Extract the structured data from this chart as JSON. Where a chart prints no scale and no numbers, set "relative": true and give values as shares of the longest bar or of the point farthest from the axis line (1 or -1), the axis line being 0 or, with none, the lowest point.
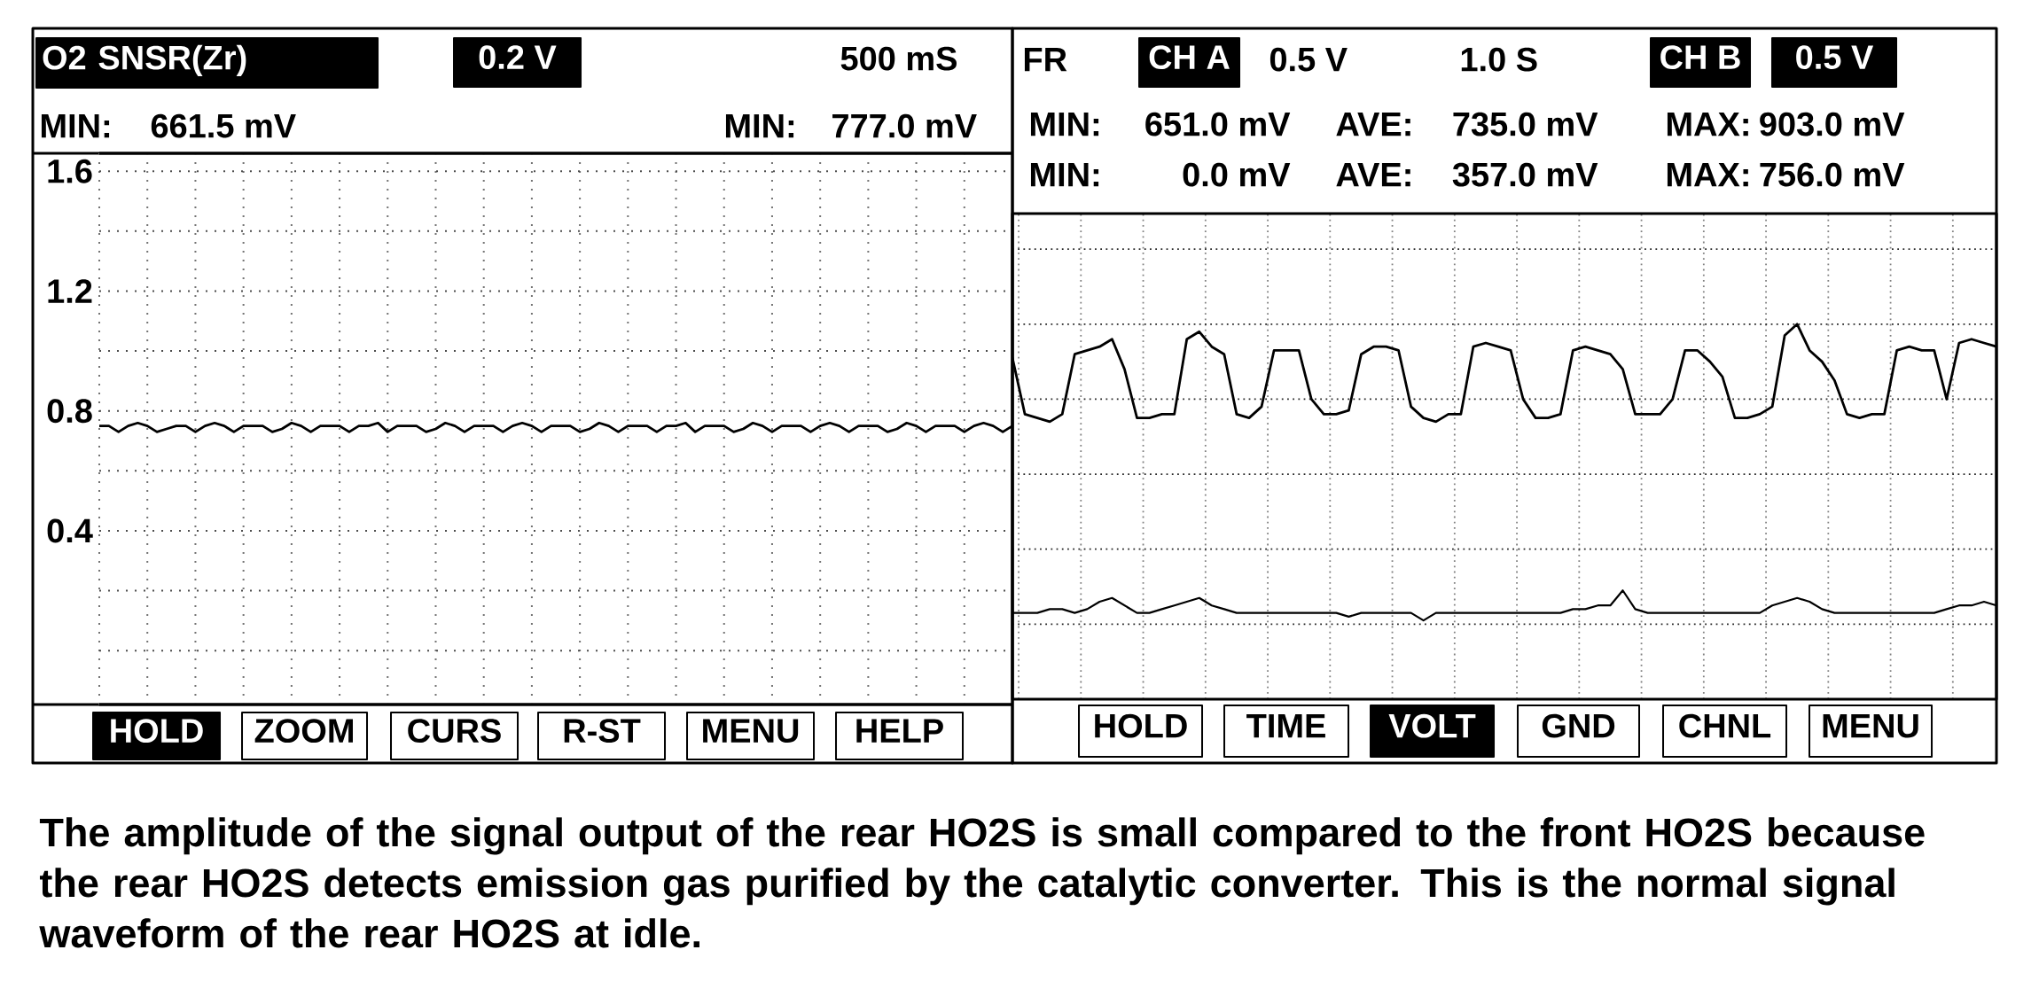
{
  "chart_data": [
    {
      "type": "line",
      "title": "O2 SNSR(Zr)",
      "categories": [
        null,
        null,
        null,
        null,
        null,
        null,
        null,
        null,
        null,
        null,
        null,
        null,
        null,
        null,
        null,
        null,
        null,
        null,
        null,
        null,
        null,
        null,
        null,
        null,
        null,
        null,
        null,
        null,
        null,
        null,
        null,
        null,
        null,
        null,
        null,
        null,
        null,
        null,
        null,
        null,
        null,
        null,
        null,
        null,
        null,
        null,
        null,
        null,
        null,
        null,
        null,
        null,
        null,
        null,
        null,
        null,
        null,
        null,
        null,
        null,
        null,
        null,
        null,
        null,
        null,
        null,
        null,
        null,
        null,
        null,
        null,
        null,
        null,
        null,
        null,
        null,
        null,
        null,
        null,
        null,
        null,
        null,
        null,
        null,
        null,
        null,
        null,
        null,
        null,
        null,
        null,
        null,
        null,
        null,
        null,
        null
      ],
      "series": [
        {
          "color": "#000000",
          "values": [
            0.75,
            0.75,
            0.73,
            0.75,
            0.76,
            0.75,
            0.73,
            0.74,
            0.75,
            0.75,
            0.73,
            0.75,
            0.76,
            0.75,
            0.73,
            0.75,
            0.75,
            0.75,
            0.73,
            0.74,
            0.76,
            0.75,
            0.73,
            0.75,
            0.75,
            0.75,
            0.73,
            0.75,
            0.75,
            0.76,
            0.73,
            0.75,
            0.75,
            0.75,
            0.73,
            0.74,
            0.76,
            0.75,
            0.73,
            0.75,
            0.75,
            0.75,
            0.73,
            0.75,
            0.76,
            0.75,
            0.73,
            0.75,
            0.75,
            0.75,
            0.73,
            0.74,
            0.76,
            0.75,
            0.73,
            0.75,
            0.75,
            0.75,
            0.73,
            0.75,
            0.75,
            0.76,
            0.73,
            0.75,
            0.75,
            0.75,
            0.73,
            0.74,
            0.76,
            0.75,
            0.73,
            0.75,
            0.75,
            0.75,
            0.73,
            0.75,
            0.76,
            0.75,
            0.73,
            0.75,
            0.75,
            0.75,
            0.73,
            0.74,
            0.76,
            0.75,
            0.73,
            0.75,
            0.75,
            0.75,
            0.73,
            0.75,
            0.76,
            0.75,
            0.73,
            0.75
          ]
        }
      ],
      "ylim": [
        -0.18,
        1.66
      ],
      "yticks": [
        {
          "value": 0,
          "label": null
        },
        {
          "value": 0.2,
          "label": null
        },
        0.4,
        {
          "value": 0.6,
          "label": null
        },
        0.8,
        {
          "value": 1.0,
          "label": null
        },
        1.2,
        {
          "value": 1.4,
          "label": null
        },
        1.6
      ],
      "grid": true,
      "annotations": [
        "0.2 V",
        "500 mS",
        "MIN:",
        "661.5 mV",
        "MIN:",
        "777.0 mV",
        "HOLD",
        "ZOOM",
        "CURS",
        "R-ST",
        "MENU",
        "HELP"
      ]
    },
    {
      "type": "line",
      "relative": true,
      "categories": [
        null,
        null,
        null,
        null,
        null,
        null,
        null,
        null,
        null,
        null,
        null,
        null,
        null,
        null,
        null,
        null,
        null,
        null,
        null,
        null,
        null,
        null,
        null,
        null,
        null,
        null,
        null,
        null,
        null,
        null,
        null,
        null,
        null,
        null,
        null,
        null,
        null,
        null,
        null,
        null,
        null,
        null,
        null,
        null,
        null,
        null,
        null,
        null,
        null,
        null,
        null,
        null,
        null,
        null,
        null,
        null,
        null,
        null,
        null,
        null,
        null,
        null,
        null,
        null,
        null,
        null,
        null,
        null,
        null,
        null,
        null,
        null,
        null,
        null,
        null,
        null,
        null,
        null,
        null,
        null
      ],
      "series": [
        {
          "color": "#000000",
          "values": [
            0.91,
            0.76,
            0.75,
            0.74,
            0.76,
            0.92,
            0.93,
            0.94,
            0.96,
            0.88,
            0.75,
            0.75,
            0.76,
            0.76,
            0.96,
            0.98,
            0.94,
            0.92,
            0.76,
            0.75,
            0.78,
            0.93,
            0.93,
            0.93,
            0.8,
            0.76,
            0.76,
            0.77,
            0.92,
            0.94,
            0.94,
            0.93,
            0.78,
            0.75,
            0.74,
            0.76,
            0.76,
            0.94,
            0.95,
            0.94,
            0.93,
            0.8,
            0.75,
            0.75,
            0.76,
            0.93,
            0.94,
            0.93,
            0.92,
            0.88,
            0.76,
            0.76,
            0.76,
            0.8,
            0.93,
            0.93,
            0.9,
            0.86,
            0.75,
            0.75,
            0.76,
            0.78,
            0.97,
            1.0,
            0.93,
            0.9,
            0.85,
            0.76,
            0.75,
            0.76,
            0.76,
            0.93,
            0.94,
            0.93,
            0.93,
            0.8,
            0.95,
            0.96,
            0.95,
            0.94
          ]
        },
        {
          "color": "#000000",
          "values": [
            0.23,
            0.23,
            0.23,
            0.24,
            0.24,
            0.23,
            0.24,
            0.26,
            0.27,
            0.25,
            0.23,
            0.23,
            0.24,
            0.25,
            0.26,
            0.27,
            0.25,
            0.24,
            0.23,
            0.23,
            0.23,
            0.23,
            0.23,
            0.23,
            0.23,
            0.23,
            0.23,
            0.22,
            0.23,
            0.23,
            0.23,
            0.23,
            0.23,
            0.21,
            0.23,
            0.23,
            0.23,
            0.23,
            0.23,
            0.23,
            0.23,
            0.23,
            0.23,
            0.23,
            0.23,
            0.24,
            0.24,
            0.25,
            0.25,
            0.29,
            0.24,
            0.23,
            0.23,
            0.23,
            0.23,
            0.23,
            0.23,
            0.23,
            0.23,
            0.23,
            0.23,
            0.25,
            0.26,
            0.27,
            0.26,
            0.24,
            0.23,
            0.23,
            0.23,
            0.23,
            0.23,
            0.23,
            0.23,
            0.23,
            0.23,
            0.24,
            0.25,
            0.25,
            0.26,
            0.25
          ]
        }
      ],
      "grid": true,
      "annotations": [
        "FR",
        "CH A",
        "0.5 V",
        "1.0 S",
        "CH B",
        "0.5 V",
        "MIN:",
        "651.0 mV",
        "AVE:",
        "735.0 mV",
        "MAX:",
        "903.0 mV",
        "MIN:",
        "0.0 mV",
        "AVE:",
        "357.0 mV",
        "MAX:",
        "756.0 mV",
        "HOLD",
        "TIME",
        "VOLT",
        "GND",
        "CHNL",
        "MENU",
        "The amplitude of the signal output of the rear HO2S is small compared to the front HO2S because the rear HO2S detects emission gas purified by the catalytic converter. This is the normal signal waveform of the rear HO2S at idle."
      ]
    }
  ]
}
